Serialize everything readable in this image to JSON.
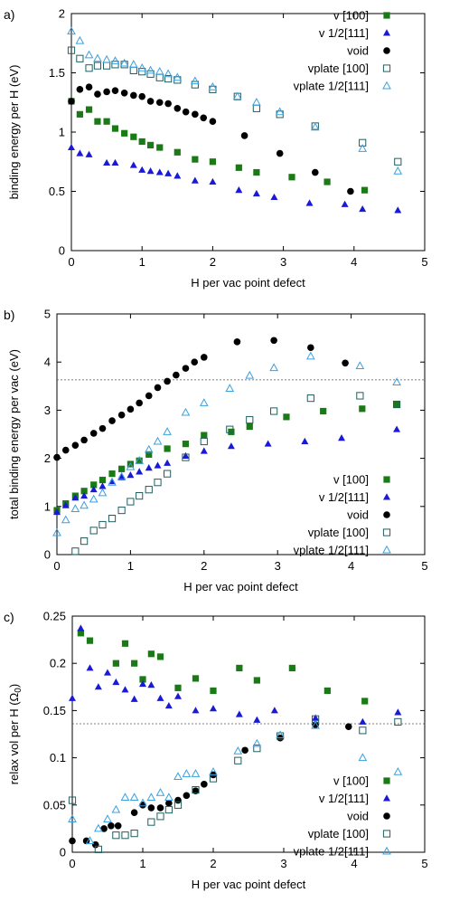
{
  "colors": {
    "v100": "#1a7a16",
    "v111": "#1a1ad6",
    "void": "#000000",
    "vplate100": "#1f5f5f",
    "vplate111": "#3aa0e0",
    "axis": "#000000",
    "refline": "#555555"
  },
  "chart_data": [
    {
      "type": "scatter",
      "panel_label": "a)",
      "xlabel": "H per vac point defect",
      "ylabel": "binding energy per H (eV)",
      "xlim": [
        0,
        5
      ],
      "ylim": [
        0,
        2
      ],
      "xticks": [
        0,
        1,
        2,
        3,
        4,
        5
      ],
      "yticks": [
        0,
        0.5,
        1,
        1.5,
        2
      ],
      "xtick_labels": [
        "0",
        "1",
        "2",
        "3",
        "4",
        "5"
      ],
      "ytick_labels": [
        "0",
        "0.5",
        "1",
        "1.5",
        "2"
      ],
      "grid": false,
      "legend_position": "top-right",
      "series": [
        {
          "name": "v [100]",
          "marker": "square-filled",
          "color_key": "v100",
          "x": [
            0,
            0.12,
            0.25,
            0.37,
            0.5,
            0.62,
            0.75,
            0.88,
            1.0,
            1.12,
            1.25,
            1.5,
            1.75,
            2.0,
            2.37,
            2.62,
            3.12,
            3.62,
            4.15
          ],
          "y": [
            1.26,
            1.15,
            1.19,
            1.09,
            1.09,
            1.03,
            0.99,
            0.96,
            0.92,
            0.89,
            0.87,
            0.83,
            0.77,
            0.75,
            0.7,
            0.66,
            0.62,
            0.58,
            0.51
          ]
        },
        {
          "name": "v 1/2[111]",
          "marker": "triangle-filled",
          "color_key": "v111",
          "x": [
            0,
            0.12,
            0.25,
            0.5,
            0.62,
            0.88,
            1.0,
            1.12,
            1.25,
            1.37,
            1.5,
            1.75,
            2.0,
            2.37,
            2.62,
            2.87,
            3.37,
            3.87,
            4.12,
            4.62
          ],
          "y": [
            0.87,
            0.82,
            0.81,
            0.74,
            0.74,
            0.72,
            0.68,
            0.67,
            0.66,
            0.65,
            0.63,
            0.59,
            0.58,
            0.51,
            0.48,
            0.45,
            0.4,
            0.39,
            0.35,
            0.34
          ]
        },
        {
          "name": "void",
          "marker": "circle-filled",
          "color_key": "void",
          "x": [
            0,
            0.12,
            0.25,
            0.37,
            0.5,
            0.62,
            0.75,
            0.88,
            1.0,
            1.12,
            1.25,
            1.37,
            1.5,
            1.62,
            1.75,
            1.87,
            2.0,
            2.45,
            2.95,
            3.45,
            3.95
          ],
          "y": [
            1.26,
            1.36,
            1.38,
            1.32,
            1.34,
            1.35,
            1.33,
            1.31,
            1.3,
            1.26,
            1.25,
            1.24,
            1.2,
            1.17,
            1.15,
            1.12,
            1.09,
            0.97,
            0.82,
            0.66,
            0.5
          ]
        },
        {
          "name": "vplate [100]",
          "marker": "square-open",
          "color_key": "vplate100",
          "x": [
            0,
            0.12,
            0.25,
            0.37,
            0.5,
            0.62,
            0.75,
            0.88,
            1.0,
            1.12,
            1.25,
            1.37,
            1.5,
            1.75,
            2.0,
            2.35,
            2.62,
            2.95,
            3.45,
            4.12,
            4.62
          ],
          "y": [
            1.69,
            1.62,
            1.54,
            1.56,
            1.56,
            1.57,
            1.57,
            1.52,
            1.51,
            1.49,
            1.46,
            1.45,
            1.44,
            1.4,
            1.36,
            1.3,
            1.2,
            1.15,
            1.05,
            0.91,
            0.75
          ]
        },
        {
          "name": "vplate 1/2[111]",
          "marker": "triangle-open",
          "color_key": "vplate111",
          "x": [
            0,
            0.12,
            0.25,
            0.37,
            0.5,
            0.62,
            0.75,
            0.88,
            1.0,
            1.12,
            1.25,
            1.37,
            1.5,
            1.75,
            2.0,
            2.35,
            2.62,
            2.95,
            3.45,
            4.12,
            4.62
          ],
          "y": [
            1.85,
            1.77,
            1.65,
            1.62,
            1.61,
            1.6,
            1.58,
            1.57,
            1.54,
            1.52,
            1.51,
            1.49,
            1.46,
            1.43,
            1.38,
            1.3,
            1.25,
            1.17,
            1.04,
            0.86,
            0.67
          ]
        }
      ]
    },
    {
      "type": "scatter",
      "panel_label": "b)",
      "xlabel": "H per vac point defect",
      "ylabel": "total binding energy per vac (eV)",
      "xlim": [
        0,
        5
      ],
      "ylim": [
        0,
        5
      ],
      "xticks": [
        0,
        1,
        2,
        3,
        4,
        5
      ],
      "yticks": [
        0,
        1,
        2,
        3,
        4,
        5
      ],
      "xtick_labels": [
        "0",
        "1",
        "2",
        "3",
        "4",
        "5"
      ],
      "ytick_labels": [
        "0",
        "1",
        "2",
        "3",
        "4",
        "5"
      ],
      "grid": false,
      "reference_line_y": 3.63,
      "legend_position": "bottom-right",
      "series": [
        {
          "name": "v [100]",
          "marker": "square-filled",
          "color_key": "v100",
          "x": [
            0,
            0.12,
            0.25,
            0.37,
            0.5,
            0.62,
            0.75,
            0.88,
            1.0,
            1.12,
            1.25,
            1.5,
            1.75,
            2.0,
            2.37,
            2.62,
            3.12,
            3.62,
            4.15,
            4.62
          ],
          "y": [
            0.92,
            1.06,
            1.22,
            1.32,
            1.45,
            1.55,
            1.68,
            1.78,
            1.88,
            1.95,
            2.08,
            2.2,
            2.3,
            2.48,
            2.55,
            2.66,
            2.86,
            2.98,
            3.03,
            3.12
          ]
        },
        {
          "name": "v 1/2[111]",
          "marker": "triangle-filled",
          "color_key": "v111",
          "x": [
            0,
            0.12,
            0.25,
            0.37,
            0.5,
            0.62,
            0.75,
            0.88,
            1.0,
            1.12,
            1.25,
            1.37,
            1.5,
            1.75,
            2.0,
            2.37,
            2.87,
            3.37,
            3.87,
            4.62
          ],
          "y": [
            0.88,
            1.02,
            1.18,
            1.22,
            1.35,
            1.42,
            1.52,
            1.6,
            1.65,
            1.72,
            1.8,
            1.85,
            1.9,
            2.05,
            2.15,
            2.25,
            2.3,
            2.35,
            2.42,
            2.6
          ]
        },
        {
          "name": "void",
          "marker": "circle-filled",
          "color_key": "void",
          "x": [
            0,
            0.12,
            0.25,
            0.37,
            0.5,
            0.62,
            0.75,
            0.88,
            1.0,
            1.12,
            1.25,
            1.37,
            1.5,
            1.62,
            1.75,
            1.87,
            2.0,
            2.45,
            2.95,
            3.45,
            3.92
          ],
          "y": [
            2.02,
            2.17,
            2.27,
            2.38,
            2.52,
            2.62,
            2.78,
            2.9,
            3.02,
            3.15,
            3.3,
            3.47,
            3.6,
            3.73,
            3.87,
            4.0,
            4.1,
            4.42,
            4.45,
            4.3,
            3.98
          ]
        },
        {
          "name": "vplate [100]",
          "marker": "square-open",
          "color_key": "vplate100",
          "x": [
            0.25,
            0.37,
            0.5,
            0.62,
            0.75,
            0.88,
            1.0,
            1.12,
            1.25,
            1.37,
            1.5,
            1.75,
            2.0,
            2.35,
            2.62,
            2.95,
            3.45,
            4.12,
            4.62
          ],
          "y": [
            0.07,
            0.28,
            0.5,
            0.62,
            0.75,
            0.92,
            1.1,
            1.22,
            1.35,
            1.5,
            1.68,
            2.02,
            2.35,
            2.6,
            2.8,
            2.98,
            3.25,
            3.3,
            3.12
          ]
        },
        {
          "name": "vplate 1/2[111]",
          "marker": "triangle-open",
          "color_key": "vplate111",
          "x": [
            0,
            0.12,
            0.25,
            0.37,
            0.5,
            0.62,
            0.75,
            0.88,
            1.0,
            1.12,
            1.25,
            1.37,
            1.5,
            1.75,
            2.0,
            2.35,
            2.62,
            2.95,
            3.45,
            4.12,
            4.62
          ],
          "y": [
            0.45,
            0.72,
            0.95,
            1.02,
            1.15,
            1.28,
            1.5,
            1.62,
            1.82,
            1.95,
            2.18,
            2.35,
            2.55,
            2.95,
            3.15,
            3.45,
            3.72,
            3.88,
            4.12,
            3.92,
            3.58
          ]
        }
      ]
    },
    {
      "type": "scatter",
      "panel_label": "c)",
      "xlabel": "H per vac point defect",
      "ylabel": "relax vol per H (Ω",
      "ylabel_subscript": "0",
      "ylabel_suffix": ")",
      "xlim": [
        0,
        5
      ],
      "ylim": [
        0,
        0.25
      ],
      "xticks": [
        0,
        1,
        2,
        3,
        4,
        5
      ],
      "yticks": [
        0,
        0.05,
        0.1,
        0.15,
        0.2,
        0.25
      ],
      "xtick_labels": [
        "0",
        "1",
        "2",
        "3",
        "4",
        "5"
      ],
      "ytick_labels": [
        "0",
        "0.05",
        "0.1",
        "0.15",
        "0.2",
        "0.25"
      ],
      "grid": false,
      "reference_line_y": 0.136,
      "legend_position": "bottom-right",
      "series": [
        {
          "name": "v [100]",
          "marker": "square-filled",
          "color_key": "v100",
          "x": [
            0.12,
            0.25,
            0.62,
            0.75,
            0.88,
            1.0,
            1.12,
            1.25,
            1.5,
            1.75,
            2.0,
            2.37,
            2.62,
            3.12,
            3.62,
            4.15
          ],
          "y": [
            0.232,
            0.224,
            0.2,
            0.221,
            0.2,
            0.183,
            0.21,
            0.207,
            0.174,
            0.184,
            0.171,
            0.195,
            0.182,
            0.195,
            0.171,
            0.16
          ]
        },
        {
          "name": "v 1/2[111]",
          "marker": "triangle-filled",
          "color_key": "v111",
          "x": [
            0,
            0.12,
            0.25,
            0.37,
            0.5,
            0.62,
            0.75,
            0.88,
            1.0,
            1.12,
            1.25,
            1.37,
            1.5,
            1.75,
            2.0,
            2.37,
            2.62,
            2.87,
            3.45,
            4.12,
            4.62
          ],
          "y": [
            0.163,
            0.237,
            0.195,
            0.175,
            0.19,
            0.18,
            0.172,
            0.162,
            0.178,
            0.177,
            0.163,
            0.155,
            0.165,
            0.15,
            0.152,
            0.146,
            0.14,
            0.15,
            0.142,
            0.138,
            0.148
          ]
        },
        {
          "name": "void",
          "marker": "circle-filled",
          "color_key": "void",
          "x": [
            0,
            0.2,
            0.33,
            0.45,
            0.55,
            0.65,
            0.88,
            1.0,
            1.12,
            1.25,
            1.37,
            1.5,
            1.62,
            1.75,
            1.87,
            2.0,
            2.45,
            2.95,
            3.45,
            3.92
          ],
          "y": [
            0.012,
            0.012,
            0.008,
            0.025,
            0.028,
            0.028,
            0.042,
            0.05,
            0.047,
            0.047,
            0.052,
            0.055,
            0.06,
            0.065,
            0.072,
            0.082,
            0.108,
            0.121,
            0.135,
            0.133
          ]
        },
        {
          "name": "vplate [100]",
          "marker": "square-open",
          "color_key": "vplate100",
          "x": [
            0,
            0.37,
            0.62,
            0.75,
            0.88,
            1.12,
            1.25,
            1.37,
            1.5,
            1.75,
            2.0,
            2.35,
            2.62,
            2.95,
            3.45,
            4.12,
            4.62
          ],
          "y": [
            0.055,
            0.003,
            0.018,
            0.018,
            0.02,
            0.032,
            0.038,
            0.045,
            0.05,
            0.066,
            0.078,
            0.097,
            0.11,
            0.123,
            0.141,
            0.129,
            0.138
          ]
        },
        {
          "name": "vplate 1/2[111]",
          "marker": "triangle-open",
          "color_key": "vplate111",
          "x": [
            0,
            0.25,
            0.37,
            0.5,
            0.62,
            0.75,
            0.88,
            1.0,
            1.12,
            1.25,
            1.37,
            1.5,
            1.62,
            1.75,
            2.0,
            2.35,
            2.62,
            2.95,
            3.45,
            4.12,
            4.62
          ],
          "y": [
            0.035,
            0.012,
            0.025,
            0.035,
            0.045,
            0.058,
            0.058,
            0.052,
            0.058,
            0.063,
            0.058,
            0.08,
            0.083,
            0.083,
            0.085,
            0.107,
            0.115,
            0.124,
            0.134,
            0.1,
            0.085
          ]
        }
      ]
    }
  ]
}
